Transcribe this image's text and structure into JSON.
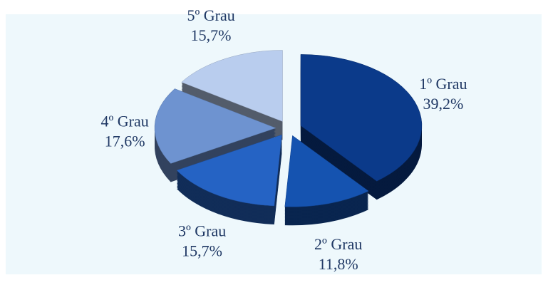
{
  "chart_data": {
    "type": "pie",
    "categories": [
      "1º Grau",
      "2º Grau",
      "3º Grau",
      "4º Grau",
      "5º Grau"
    ],
    "values": [
      39.2,
      11.8,
      15.7,
      17.6,
      15.7
    ],
    "value_labels": [
      "39,2%",
      "11,8%",
      "15,7%",
      "17,6%",
      "15,7%"
    ],
    "colors": [
      "#0b3a8a",
      "#1553b0",
      "#2563c4",
      "#6e93d0",
      "#b9cdee"
    ]
  }
}
